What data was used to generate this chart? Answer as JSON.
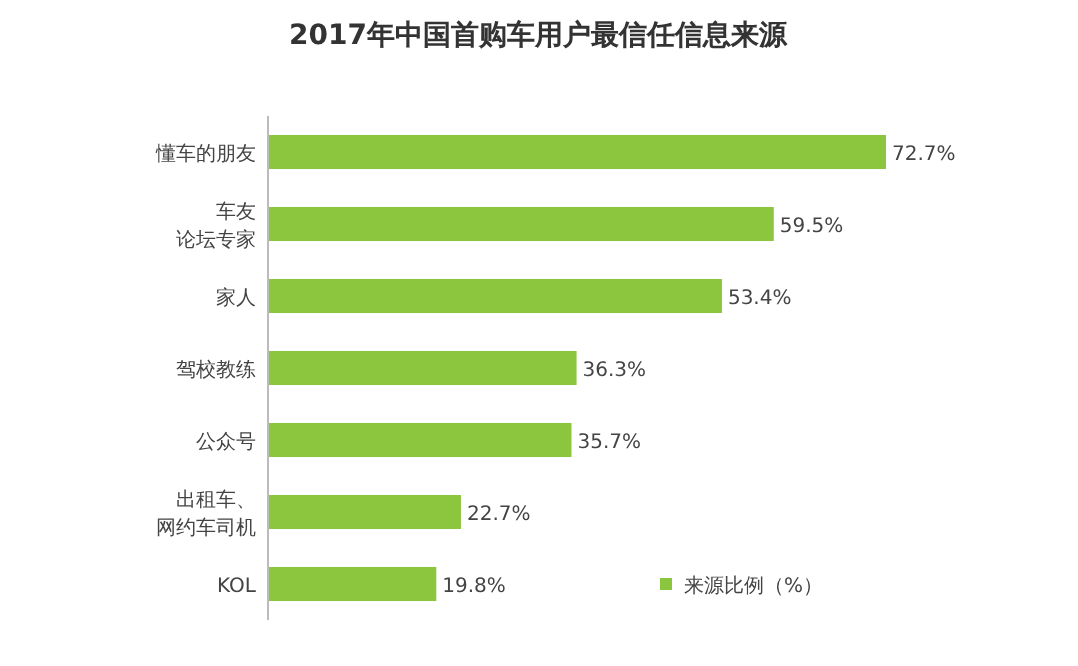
{
  "chart_data": {
    "type": "bar",
    "orientation": "horizontal",
    "title": "2017年中国首购车用户最信任信息来源",
    "categories": [
      "懂车的朋友",
      "车友论坛专家",
      "家人",
      "驾校教练",
      "公众号",
      "出租车、网约车司机",
      "KOL"
    ],
    "series": [
      {
        "name": "来源比例（%）",
        "color": "#8cc63f",
        "values": [
          72.7,
          59.5,
          53.4,
          36.3,
          35.7,
          22.7,
          19.8
        ],
        "value_labels": [
          "72.7%",
          "59.5%",
          "53.4%",
          "36.3%",
          "35.7%",
          "22.7%",
          "19.8%"
        ]
      }
    ],
    "legend": "bottom right",
    "grid": false
  }
}
